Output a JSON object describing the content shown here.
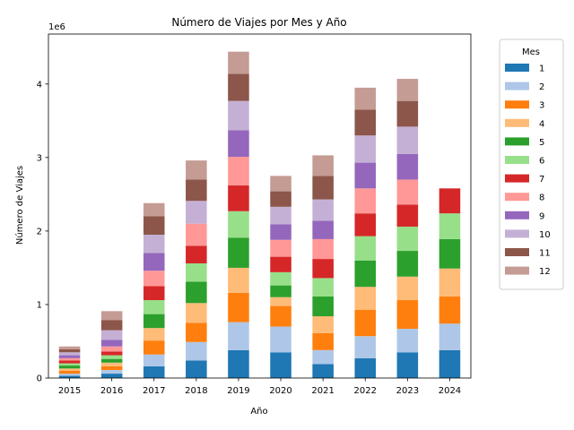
{
  "chart_data": {
    "type": "bar",
    "stacked": true,
    "title": "Número de Viajes por Mes y Año",
    "xlabel": "Año",
    "ylabel": "Número de Viajes",
    "y_offset_text": "1e6",
    "ylim": [
      0,
      4.68
    ],
    "y_ticks": [
      0,
      1,
      2,
      3,
      4
    ],
    "categories": [
      "2015",
      "2016",
      "2017",
      "2018",
      "2019",
      "2020",
      "2021",
      "2022",
      "2023",
      "2024"
    ],
    "legend_title": "Mes",
    "legend_position": "outside right",
    "grid": false,
    "series": [
      {
        "name": "1",
        "color": "#1f77b4",
        "values": [
          0.03,
          0.06,
          0.16,
          0.24,
          0.38,
          0.35,
          0.19,
          0.27,
          0.35,
          0.38
        ]
      },
      {
        "name": "2",
        "color": "#aec7e8",
        "values": [
          0.03,
          0.05,
          0.16,
          0.25,
          0.38,
          0.35,
          0.19,
          0.3,
          0.32,
          0.36
        ]
      },
      {
        "name": "3",
        "color": "#ff7f0e",
        "values": [
          0.04,
          0.05,
          0.19,
          0.26,
          0.4,
          0.28,
          0.23,
          0.36,
          0.39,
          0.37
        ]
      },
      {
        "name": "4",
        "color": "#ffbb78",
        "values": [
          0.03,
          0.05,
          0.17,
          0.27,
          0.34,
          0.12,
          0.23,
          0.31,
          0.32,
          0.38
        ]
      },
      {
        "name": "5",
        "color": "#2ca02c",
        "values": [
          0.04,
          0.05,
          0.19,
          0.29,
          0.41,
          0.16,
          0.27,
          0.36,
          0.35,
          0.4
        ]
      },
      {
        "name": "6",
        "color": "#98df8a",
        "values": [
          0.03,
          0.05,
          0.19,
          0.25,
          0.36,
          0.18,
          0.25,
          0.33,
          0.33,
          0.35
        ]
      },
      {
        "name": "7",
        "color": "#d62728",
        "values": [
          0.04,
          0.05,
          0.19,
          0.24,
          0.35,
          0.21,
          0.26,
          0.31,
          0.3,
          0.34
        ]
      },
      {
        "name": "8",
        "color": "#ff9896",
        "values": [
          0.03,
          0.07,
          0.21,
          0.3,
          0.39,
          0.23,
          0.27,
          0.34,
          0.34,
          0
        ]
      },
      {
        "name": "9",
        "color": "#9467bd",
        "values": [
          0.04,
          0.09,
          0.24,
          0.0,
          0.36,
          0.21,
          0.25,
          0.35,
          0.35,
          0
        ]
      },
      {
        "name": "10",
        "color": "#c5b0d5",
        "values": [
          0.04,
          0.13,
          0.25,
          0.31,
          0.4,
          0.24,
          0.29,
          0.37,
          0.37,
          0
        ]
      },
      {
        "name": "11",
        "color": "#8c564b",
        "values": [
          0.04,
          0.14,
          0.25,
          0.29,
          0.37,
          0.21,
          0.32,
          0.35,
          0.35,
          0
        ]
      },
      {
        "name": "12",
        "color": "#c49c94",
        "values": [
          0.04,
          0.12,
          0.18,
          0.26,
          0.3,
          0.21,
          0.28,
          0.3,
          0.3,
          0
        ]
      }
    ]
  }
}
